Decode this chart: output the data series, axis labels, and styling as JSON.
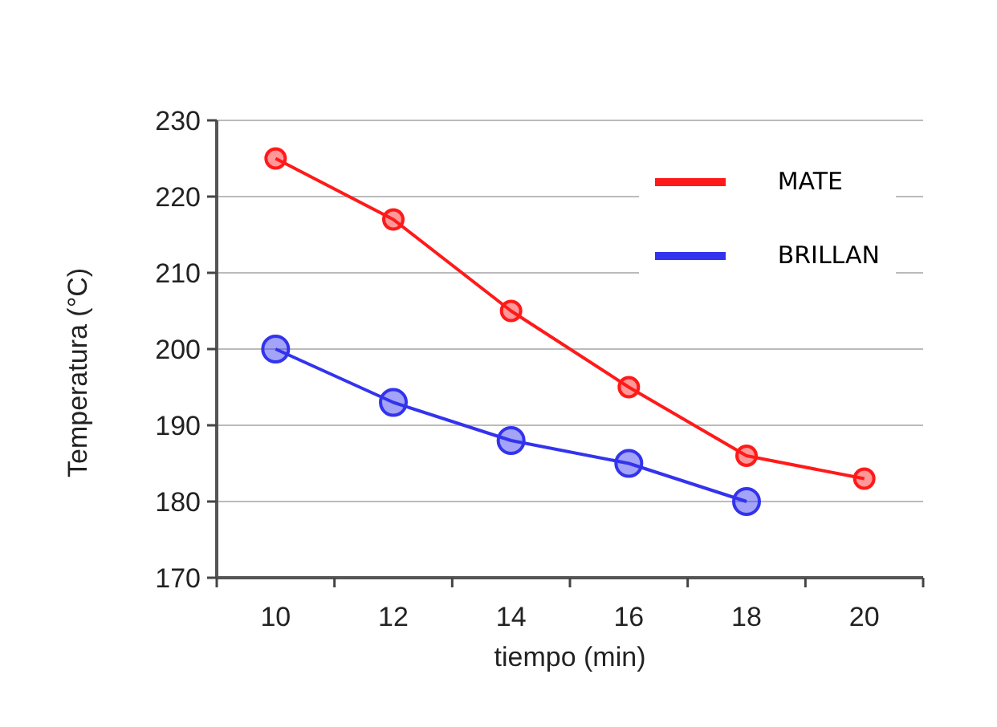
{
  "chart_data": {
    "type": "line",
    "xlabel": "tiempo (min)",
    "ylabel": "Temperatura (°C)",
    "xlim": [
      9,
      21
    ],
    "xticks": [
      {
        "value": 9,
        "label": null
      },
      10,
      {
        "value": 11,
        "label": null
      },
      12,
      {
        "value": 13,
        "label": null
      },
      14,
      {
        "value": 15,
        "label": null
      },
      16,
      {
        "value": 17,
        "label": null
      },
      18,
      {
        "value": 19,
        "label": null
      },
      20,
      {
        "value": 21,
        "label": null
      }
    ],
    "ylim": [
      170,
      230
    ],
    "yticks": [
      170,
      180,
      190,
      200,
      210,
      220,
      230
    ],
    "grid": "y",
    "legend": "top right",
    "marker": "circle",
    "line_style": "solid",
    "series": [
      {
        "name": "MATE",
        "color": "#ff1a1a",
        "x": [
          10,
          12,
          14,
          16,
          18,
          20
        ],
        "values": [
          225,
          217,
          205,
          195,
          186,
          183
        ]
      },
      {
        "name": "BRILLAN",
        "color": "#3333ee",
        "x": [
          10,
          12,
          14,
          16,
          18
        ],
        "values": [
          200,
          193,
          188,
          185,
          180
        ]
      }
    ]
  }
}
